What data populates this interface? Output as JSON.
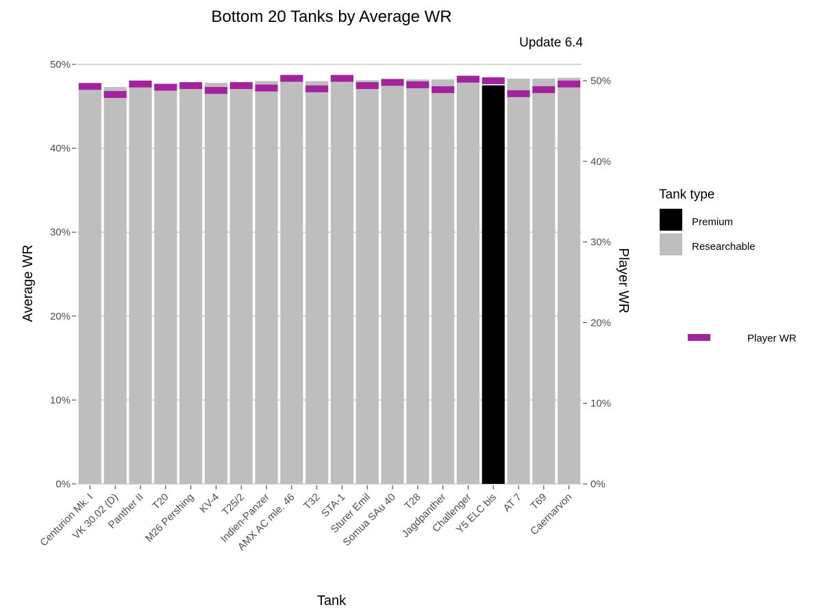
{
  "chart_data": {
    "type": "bar",
    "title": "Bottom 20 Tanks by Average WR",
    "subtitle": "Update 6.4",
    "xlabel": "Tank",
    "ylabel": "Average WR",
    "y2label": "Player WR",
    "ylim": [
      0,
      50
    ],
    "y2lim": [
      0,
      50
    ],
    "y_ticks": [
      "0%",
      "10%",
      "20%",
      "30%",
      "40%",
      "50%"
    ],
    "y2_ticks": [
      "0%",
      "10%",
      "20%",
      "30%",
      "40%",
      "50%"
    ],
    "grid": true,
    "categories": [
      "Centurion Mk. I",
      "VK 30.02 (D)",
      "Panther II",
      "T20",
      "M26 Pershing",
      "KV-4",
      "T25/2",
      "Indien-Panzer",
      "AMX AC mle. 46",
      "T32",
      "STA-1",
      "Sturer Emil",
      "Somua SAu 40",
      "T28",
      "Jagdpanther",
      "Challenger",
      "Y5 ELC bis",
      "AT 7",
      "T69",
      "Caernarvon"
    ],
    "tank_type": [
      "Researchable",
      "Researchable",
      "Researchable",
      "Researchable",
      "Researchable",
      "Researchable",
      "Researchable",
      "Researchable",
      "Researchable",
      "Researchable",
      "Researchable",
      "Researchable",
      "Researchable",
      "Researchable",
      "Researchable",
      "Researchable",
      "Premium",
      "Researchable",
      "Researchable",
      "Researchable"
    ],
    "series": [
      {
        "name": "Average WR",
        "axis": "left",
        "values": [
          47.6,
          47.3,
          47.9,
          47.6,
          47.8,
          47.8,
          47.9,
          48.0,
          48.5,
          48.0,
          48.5,
          48.1,
          48.1,
          48.2,
          48.2,
          48.5,
          47.5,
          48.3,
          48.3,
          48.4
        ]
      },
      {
        "name": "Player WR",
        "axis": "right",
        "values": [
          49.3,
          48.3,
          49.6,
          49.2,
          49.4,
          48.8,
          49.4,
          49.1,
          50.3,
          49.0,
          50.3,
          49.4,
          49.8,
          49.5,
          48.9,
          50.2,
          50.0,
          48.4,
          48.9,
          49.6
        ]
      }
    ],
    "legend": {
      "title": "Tank type",
      "placement": "right",
      "items": [
        {
          "label": "Premium",
          "color": "#000000"
        },
        {
          "label": "Researchable",
          "color": "#bebebe"
        }
      ],
      "marker_label": "Player WR",
      "marker_color": "#a3229e"
    }
  },
  "colors": {
    "premium": "#000000",
    "researchable": "#bebebe",
    "player_wr": "#a3229e",
    "grid": "#c8c8c8",
    "tick_text": "#4d4d4d"
  }
}
